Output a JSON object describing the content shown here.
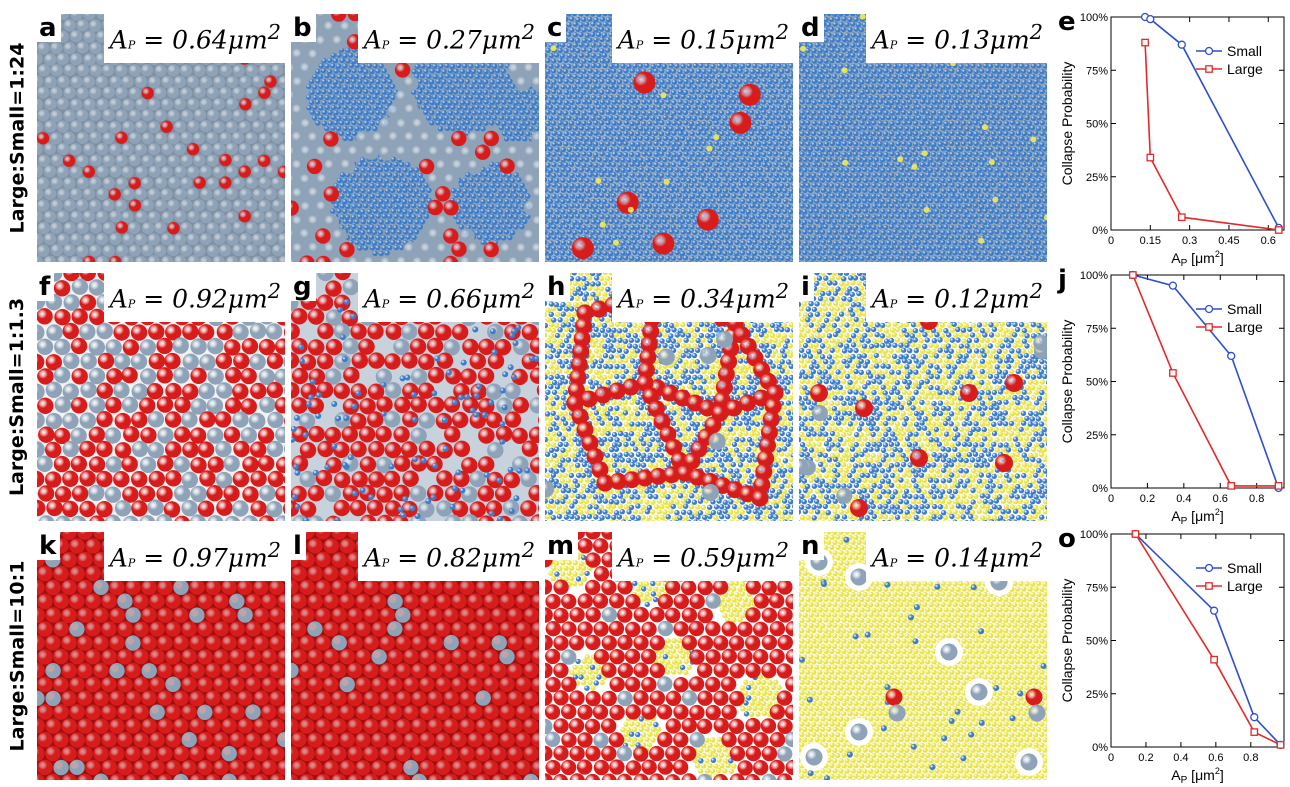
{
  "rows": [
    {
      "label": "Large:Small=1:24",
      "panels": [
        {
          "letter": "a",
          "area": "0.64μm",
          "power": "2",
          "mode": "grayRed"
        },
        {
          "letter": "b",
          "area": "0.27μm",
          "power": "2",
          "mode": "grayBlue"
        },
        {
          "letter": "c",
          "area": "0.15μm",
          "power": "2",
          "mode": "blueMost"
        },
        {
          "letter": "d",
          "area": "0.13μm",
          "power": "2",
          "mode": "blueAll"
        }
      ]
    },
    {
      "label": "Large:Small=1:1.3",
      "panels": [
        {
          "letter": "f",
          "area": "0.92μm",
          "power": "2",
          "mode": "redGray"
        },
        {
          "letter": "g",
          "area": "0.66μm",
          "power": "2",
          "mode": "redGrayBlue"
        },
        {
          "letter": "h",
          "area": "0.34μm",
          "power": "2",
          "mode": "redNetwork"
        },
        {
          "letter": "i",
          "area": "0.12μm",
          "power": "2",
          "mode": "yellowBlue"
        }
      ]
    },
    {
      "label": "Large:Small=10:1",
      "panels": [
        {
          "letter": "k",
          "area": "0.97μm",
          "power": "2",
          "mode": "redDense"
        },
        {
          "letter": "l",
          "area": "0.82μm",
          "power": "2",
          "mode": "redDense2"
        },
        {
          "letter": "m",
          "area": "0.59μm",
          "power": "2",
          "mode": "redYellow"
        },
        {
          "letter": "n",
          "area": "0.14μm",
          "power": "2",
          "mode": "yellowAll"
        }
      ]
    }
  ],
  "colors": {
    "red": "#d81c1c",
    "gray": "#8ea3b8",
    "blue": "#3d7cc9",
    "yellow": "#e9e44a",
    "small": "#2b4fcf",
    "large": "#e22a2a"
  },
  "chart_data": [
    {
      "letter": "e",
      "type": "line",
      "ylabel": "Collapse Probability",
      "xlabel": "A",
      "xlabel_sub": "P",
      "xlabel_unit": "[μm",
      "xlabel_power": "2",
      "xlabel_close": "]",
      "xlim": [
        0,
        0.66
      ],
      "ylim": [
        0,
        1
      ],
      "xticks": [
        0,
        0.15,
        0.3,
        0.45,
        0.6
      ],
      "xtick_labels": [
        "0",
        "0.15",
        "0.3",
        "0.45",
        "0.6"
      ],
      "yticks": [
        0,
        0.25,
        0.5,
        0.75,
        1
      ],
      "ytick_labels": [
        "0%",
        "25%",
        "50%",
        "75%",
        "100%"
      ],
      "series": [
        {
          "name": "Small",
          "color": "#2b4fcf",
          "marker": "circle",
          "x": [
            0.13,
            0.15,
            0.27,
            0.64
          ],
          "y": [
            1.0,
            0.99,
            0.87,
            0.01
          ]
        },
        {
          "name": "Large",
          "color": "#e22a2a",
          "marker": "square",
          "x": [
            0.13,
            0.15,
            0.27,
            0.64
          ],
          "y": [
            0.88,
            0.34,
            0.06,
            0.0
          ]
        }
      ]
    },
    {
      "letter": "j",
      "type": "line",
      "ylabel": "Collapse Probability",
      "xlabel": "A",
      "xlabel_sub": "P",
      "xlabel_unit": "[μm",
      "xlabel_power": "2",
      "xlabel_close": "]",
      "xlim": [
        0,
        0.95
      ],
      "ylim": [
        0,
        1
      ],
      "xticks": [
        0,
        0.2,
        0.4,
        0.6,
        0.8
      ],
      "xtick_labels": [
        "0",
        "0.2",
        "0.4",
        "0.6",
        "0.8"
      ],
      "yticks": [
        0,
        0.25,
        0.5,
        0.75,
        1
      ],
      "ytick_labels": [
        "0%",
        "25%",
        "50%",
        "75%",
        "100%"
      ],
      "series": [
        {
          "name": "Small",
          "color": "#2b4fcf",
          "marker": "circle",
          "x": [
            0.12,
            0.34,
            0.66,
            0.92
          ],
          "y": [
            1.0,
            0.95,
            0.62,
            0.0
          ]
        },
        {
          "name": "Large",
          "color": "#e22a2a",
          "marker": "square",
          "x": [
            0.12,
            0.34,
            0.66,
            0.92
          ],
          "y": [
            1.0,
            0.54,
            0.01,
            0.01
          ]
        }
      ]
    },
    {
      "letter": "o",
      "type": "line",
      "ylabel": "Collapse Probability",
      "xlabel": "A",
      "xlabel_sub": "P",
      "xlabel_unit": "[μm",
      "xlabel_power": "2",
      "xlabel_close": "]",
      "xlim": [
        0,
        0.99
      ],
      "ylim": [
        0,
        1
      ],
      "xticks": [
        0,
        0.2,
        0.4,
        0.6,
        0.8
      ],
      "xtick_labels": [
        "0",
        "0.2",
        "0.4",
        "0.6",
        "0.8"
      ],
      "yticks": [
        0,
        0.25,
        0.5,
        0.75,
        1
      ],
      "ytick_labels": [
        "0%",
        "25%",
        "50%",
        "75%",
        "100%"
      ],
      "series": [
        {
          "name": "Small",
          "color": "#2b4fcf",
          "marker": "circle",
          "x": [
            0.14,
            0.59,
            0.82,
            0.97
          ],
          "y": [
            1.0,
            0.64,
            0.14,
            0.01
          ]
        },
        {
          "name": "Large",
          "color": "#e22a2a",
          "marker": "square",
          "x": [
            0.14,
            0.59,
            0.82,
            0.97
          ],
          "y": [
            1.0,
            0.41,
            0.07,
            0.01
          ]
        }
      ]
    }
  ]
}
